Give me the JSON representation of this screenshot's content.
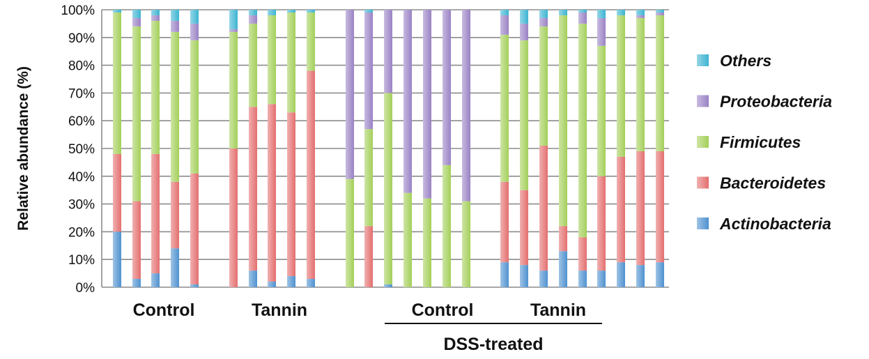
{
  "chart_data": {
    "type": "bar",
    "stacked": true,
    "percent_stacked": true,
    "ylabel": "Relative abundance (%)",
    "ylim": [
      0,
      100
    ],
    "yticks": [
      "0%",
      "10%",
      "20%",
      "30%",
      "40%",
      "50%",
      "60%",
      "70%",
      "80%",
      "90%",
      "100%"
    ],
    "grid": true,
    "legend_position": "right",
    "group_labels": [
      "Control",
      "Tannin",
      "Control",
      "Tannin"
    ],
    "treatment_label": "DSS-treated",
    "series": [
      {
        "name": "Actinobacteria",
        "color": "#4f92d0",
        "values": [
          20,
          3,
          5,
          14,
          1,
          0,
          6,
          2,
          4,
          3,
          0,
          0,
          1,
          0,
          0,
          0,
          0,
          9,
          8,
          6,
          13,
          6,
          6,
          9,
          8,
          9
        ]
      },
      {
        "name": "Bacteroidetes",
        "color": "#e46f6f",
        "values": [
          28,
          28,
          43,
          24,
          40,
          50,
          59,
          64,
          59,
          75,
          0,
          22,
          0,
          0,
          0,
          0,
          0,
          29,
          27,
          45,
          9,
          12,
          34,
          38,
          41,
          40
        ]
      },
      {
        "name": "Firmicutes",
        "color": "#a4cf5a",
        "values": [
          51,
          63,
          48,
          54,
          48,
          42,
          30,
          32,
          36,
          21,
          39,
          35,
          69,
          34,
          32,
          44,
          31,
          53,
          54,
          43,
          76,
          77,
          47,
          51,
          48,
          49
        ]
      },
      {
        "name": "Proteobacteria",
        "color": "#9a82c4",
        "values": [
          0,
          3,
          2,
          4,
          6,
          1,
          3,
          0,
          0,
          0,
          61,
          42,
          30,
          66,
          68,
          56,
          69,
          7,
          6,
          3,
          0,
          4,
          10,
          0,
          1,
          1
        ]
      },
      {
        "name": "Others",
        "color": "#3db4d2",
        "values": [
          1,
          3,
          2,
          4,
          5,
          7,
          2,
          2,
          1,
          1,
          0,
          1,
          0,
          0,
          0,
          0,
          0,
          2,
          5,
          3,
          2,
          1,
          3,
          2,
          2,
          1
        ]
      }
    ]
  }
}
